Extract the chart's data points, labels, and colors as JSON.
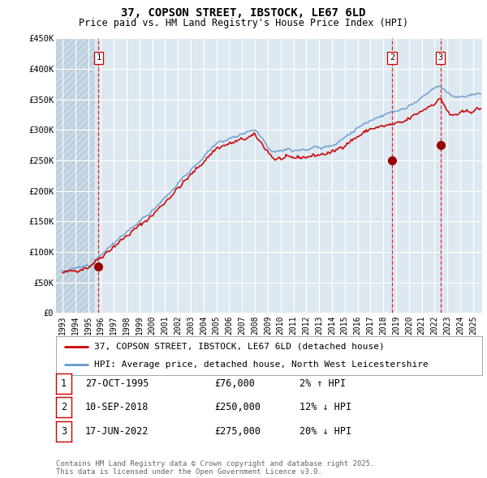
{
  "title": "37, COPSON STREET, IBSTOCK, LE67 6LD",
  "subtitle": "Price paid vs. HM Land Registry's House Price Index (HPI)",
  "ylim": [
    0,
    450000
  ],
  "yticks": [
    0,
    50000,
    100000,
    150000,
    200000,
    250000,
    300000,
    350000,
    400000,
    450000
  ],
  "ytick_labels": [
    "£0",
    "£50K",
    "£100K",
    "£150K",
    "£200K",
    "£250K",
    "£300K",
    "£350K",
    "£400K",
    "£450K"
  ],
  "xlim_start": 1992.5,
  "xlim_end": 2025.7,
  "xticks": [
    1993,
    1994,
    1995,
    1996,
    1997,
    1998,
    1999,
    2000,
    2001,
    2002,
    2003,
    2004,
    2005,
    2006,
    2007,
    2008,
    2009,
    2010,
    2011,
    2012,
    2013,
    2014,
    2015,
    2016,
    2017,
    2018,
    2019,
    2020,
    2021,
    2022,
    2023,
    2024,
    2025
  ],
  "background_color": "#ffffff",
  "plot_bg_color": "#dde8f0",
  "grid_color": "#ffffff",
  "hpi_line_color": "#6699cc",
  "price_line_color": "#cc0000",
  "sale_marker_color": "#990000",
  "dashed_line_color": "#cc0000",
  "legend_label_price": "37, COPSON STREET, IBSTOCK, LE67 6LD (detached house)",
  "legend_label_hpi": "HPI: Average price, detached house, North West Leicestershire",
  "transactions": [
    {
      "num": 1,
      "date_label": "27-OCT-1995",
      "year": 1995.82,
      "price": 76000,
      "hpi_pct": "2% ↑ HPI"
    },
    {
      "num": 2,
      "date_label": "10-SEP-2018",
      "year": 2018.69,
      "price": 250000,
      "hpi_pct": "12% ↓ HPI"
    },
    {
      "num": 3,
      "date_label": "17-JUN-2022",
      "year": 2022.45,
      "price": 275000,
      "hpi_pct": "20% ↓ HPI"
    }
  ],
  "footer": "Contains HM Land Registry data © Crown copyright and database right 2025.\nThis data is licensed under the Open Government Licence v3.0.",
  "title_fontsize": 10,
  "subtitle_fontsize": 8.5,
  "tick_fontsize": 7.5,
  "legend_fontsize": 8,
  "table_fontsize": 8.5,
  "footer_fontsize": 6.5
}
